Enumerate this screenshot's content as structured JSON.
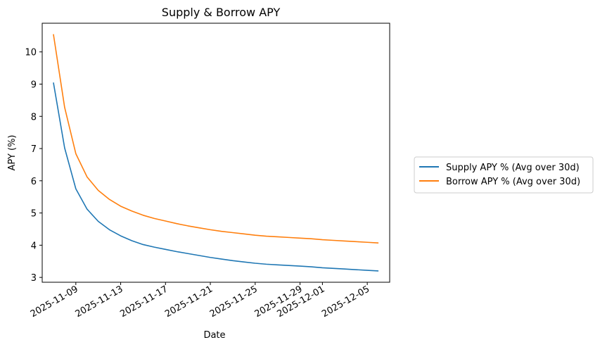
{
  "chart_data": {
    "type": "line",
    "title": "Supply & Borrow APY",
    "xlabel": "Date",
    "ylabel": "APY (%)",
    "x_ticks": [
      "2025-11-09",
      "2025-11-13",
      "2025-11-17",
      "2025-11-21",
      "2025-11-25",
      "2025-11-29",
      "2025-12-01",
      "2025-12-05"
    ],
    "y_ticks": [
      3,
      4,
      5,
      6,
      7,
      8,
      9,
      10
    ],
    "ylim": [
      2.85,
      10.89
    ],
    "xlim": [
      "2025-11-06",
      "2025-12-07"
    ],
    "grid": false,
    "legend_position": "right, outside plot",
    "x": [
      "2025-11-07",
      "2025-11-08",
      "2025-11-09",
      "2025-11-10",
      "2025-11-11",
      "2025-11-12",
      "2025-11-13",
      "2025-11-14",
      "2025-11-15",
      "2025-11-16",
      "2025-11-17",
      "2025-11-18",
      "2025-11-19",
      "2025-11-20",
      "2025-11-21",
      "2025-11-22",
      "2025-11-23",
      "2025-11-24",
      "2025-11-25",
      "2025-11-26",
      "2025-11-27",
      "2025-11-28",
      "2025-11-29",
      "2025-11-30",
      "2025-12-01",
      "2025-12-02",
      "2025-12-03",
      "2025-12-04",
      "2025-12-05",
      "2025-12-06"
    ],
    "series": [
      {
        "name": "Supply APY % (Avg over 30d)",
        "color": "#1f77b4",
        "values": [
          9.05,
          7.02,
          5.75,
          5.12,
          4.74,
          4.48,
          4.29,
          4.14,
          4.02,
          3.94,
          3.87,
          3.8,
          3.74,
          3.68,
          3.62,
          3.57,
          3.52,
          3.48,
          3.44,
          3.41,
          3.39,
          3.37,
          3.35,
          3.33,
          3.3,
          3.28,
          3.26,
          3.24,
          3.22,
          3.2
        ]
      },
      {
        "name": "Borrow APY % (Avg over 30d)",
        "color": "#ff7f0e",
        "values": [
          10.55,
          8.28,
          6.84,
          6.12,
          5.7,
          5.42,
          5.21,
          5.06,
          4.93,
          4.83,
          4.75,
          4.67,
          4.6,
          4.54,
          4.48,
          4.43,
          4.39,
          4.35,
          4.31,
          4.28,
          4.26,
          4.24,
          4.22,
          4.2,
          4.17,
          4.15,
          4.13,
          4.11,
          4.09,
          4.07
        ]
      }
    ]
  }
}
